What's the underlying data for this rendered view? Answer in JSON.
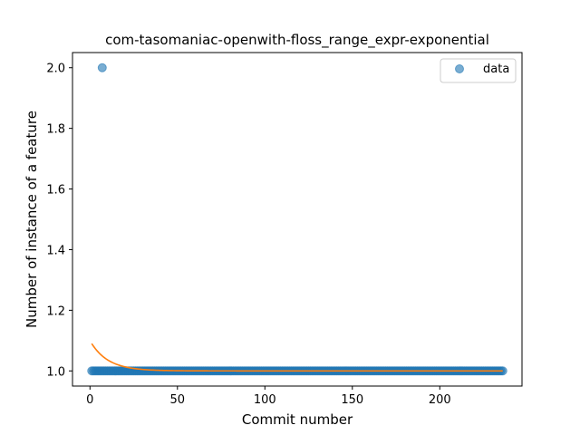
{
  "chart_data": {
    "type": "scatter",
    "title": "com-tasomaniac-openwith-floss_range_expr-exponential",
    "xlabel": "Commit number",
    "ylabel": "Number of instance of a feature",
    "xlim": [
      -10,
      247
    ],
    "ylim": [
      0.95,
      2.05
    ],
    "xticks": [
      0,
      50,
      100,
      150,
      200
    ],
    "yticks": [
      1.0,
      1.2,
      1.4,
      1.6,
      1.8,
      2.0
    ],
    "xtick_labels": [
      "0",
      "50",
      "100",
      "150",
      "200"
    ],
    "ytick_labels": [
      "1.0",
      "1.2",
      "1.4",
      "1.6",
      "1.8",
      "2.0"
    ],
    "grid": false,
    "legend_position": "top-right",
    "series": [
      {
        "name": "data",
        "kind": "scatter",
        "color": "#1f77b4",
        "x_start": 1,
        "x_end": 236,
        "baseline_y": 1.0,
        "outliers": [
          {
            "x": 7,
            "y": 2.0
          }
        ]
      },
      {
        "kind": "line",
        "color": "#ff7f0e",
        "fit": "exponential",
        "x_range": [
          1,
          236
        ],
        "y_asymptote": 1.0,
        "y_at_x1": 1.09,
        "decay_rate": 0.1
      }
    ],
    "legend": [
      {
        "label": "data",
        "marker": "circle",
        "color": "#1f77b4"
      }
    ]
  }
}
